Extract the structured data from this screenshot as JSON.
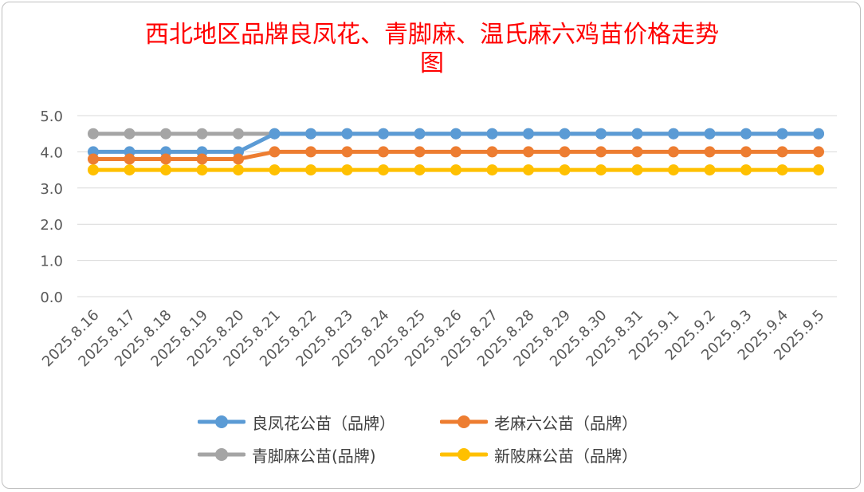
{
  "chart_data": {
    "type": "line",
    "title": "西北地区品牌良凤花、青脚麻、温氏麻六鸡苗价格走势图",
    "title_lines": [
      "西北地区品牌良凤花、青脚麻、温氏麻六鸡苗价格走势",
      "图"
    ],
    "xlabel": "",
    "ylabel": "",
    "ylim": [
      0,
      5
    ],
    "yticks": [
      "0.0",
      "1.0",
      "2.0",
      "3.0",
      "4.0",
      "5.0"
    ],
    "grid": true,
    "legend_position": "bottom",
    "categories": [
      "2025.8.16",
      "2025.8.17",
      "2025.8.18",
      "2025.8.19",
      "2025.8.20",
      "2025.8.21",
      "2025.8.22",
      "2025.8.23",
      "2025.8.24",
      "2025.8.25",
      "2025.8.26",
      "2025.8.27",
      "2025.8.28",
      "2025.8.29",
      "2025.8.30",
      "2025.8.31",
      "2025.9.1",
      "2025.9.2",
      "2025.9.3",
      "2025.9.4",
      "2025.9.5"
    ],
    "series": [
      {
        "name": "良凤花公苗（品牌）",
        "color": "#5b9bd5",
        "values": [
          4.0,
          4.0,
          4.0,
          4.0,
          4.0,
          4.5,
          4.5,
          4.5,
          4.5,
          4.5,
          4.5,
          4.5,
          4.5,
          4.5,
          4.5,
          4.5,
          4.5,
          4.5,
          4.5,
          4.5,
          4.5
        ]
      },
      {
        "name": "老麻六公苗（品牌）",
        "color": "#ed7d31",
        "values": [
          3.8,
          3.8,
          3.8,
          3.8,
          3.8,
          4.0,
          4.0,
          4.0,
          4.0,
          4.0,
          4.0,
          4.0,
          4.0,
          4.0,
          4.0,
          4.0,
          4.0,
          4.0,
          4.0,
          4.0,
          4.0
        ]
      },
      {
        "name": "青脚麻公苗(品牌)",
        "color": "#a5a5a5",
        "values": [
          4.5,
          4.5,
          4.5,
          4.5,
          4.5,
          4.5,
          4.5,
          4.5,
          4.5,
          4.5,
          4.5,
          4.5,
          4.5,
          4.5,
          4.5,
          4.5,
          4.5,
          4.5,
          4.5,
          4.5,
          4.5
        ]
      },
      {
        "name": "新陂麻公苗（品牌）",
        "color": "#ffc000",
        "values": [
          3.5,
          3.5,
          3.5,
          3.5,
          3.5,
          3.5,
          3.5,
          3.5,
          3.5,
          3.5,
          3.5,
          3.5,
          3.5,
          3.5,
          3.5,
          3.5,
          3.5,
          3.5,
          3.5,
          3.5,
          3.5
        ]
      }
    ]
  }
}
